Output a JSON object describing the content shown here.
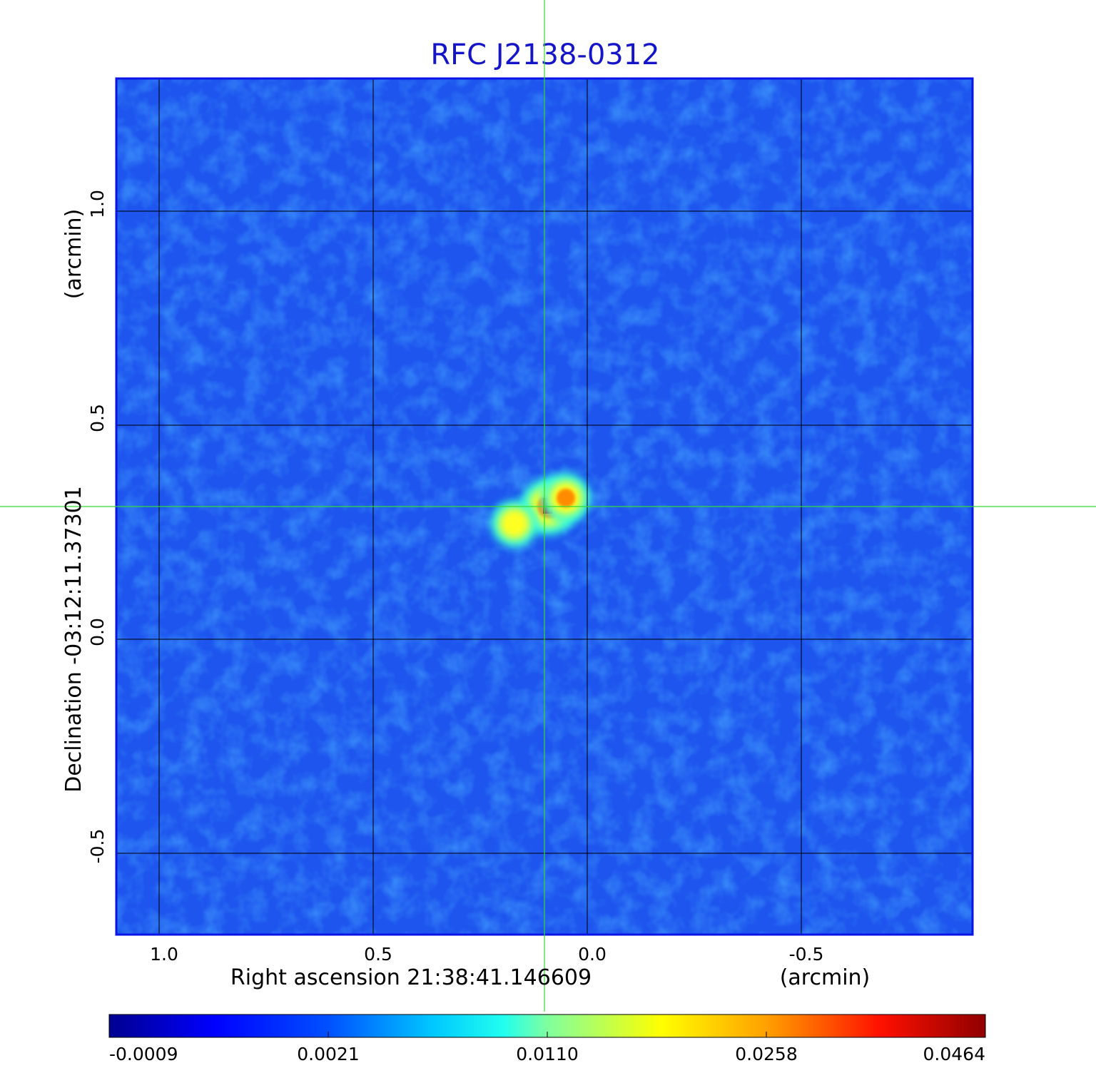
{
  "title": "RFC J2138-0312",
  "colors": {
    "title": "#1414c8",
    "frame": "#0a14e6",
    "background_field": "#1d55ee",
    "crosshair": "#33dd33",
    "grid": "#000000"
  },
  "x_axis": {
    "label": "Right ascension  21:38:41.146609",
    "unit": "(arcmin)",
    "ticks": [
      "1.0",
      "0.5",
      "0.0",
      "-0.5"
    ],
    "range": [
      1.1,
      -0.9
    ]
  },
  "y_axis": {
    "label": "Declination  -03:12:11.37301",
    "unit": "(arcmin)",
    "ticks": [
      "1.0",
      "0.5",
      "0.0",
      "-0.5"
    ],
    "range": [
      -0.69,
      1.31
    ]
  },
  "colorbar": {
    "colormap": "jet",
    "scale": "non-linear",
    "ticks": [
      "-0.0009",
      "0.0021",
      "0.0110",
      "0.0258",
      "0.0464"
    ]
  },
  "crosshair": {
    "ra_offset_arcmin": 0.1,
    "dec_offset_arcmin": 0.31
  },
  "sources": [
    {
      "ra_offset_arcmin": 0.09,
      "dec_offset_arcmin": 0.31,
      "peak": 0.0464
    },
    {
      "ra_offset_arcmin": 0.17,
      "dec_offset_arcmin": 0.27,
      "peak": 0.028
    },
    {
      "ra_offset_arcmin": 0.05,
      "dec_offset_arcmin": 0.33,
      "peak": 0.033
    }
  ]
}
